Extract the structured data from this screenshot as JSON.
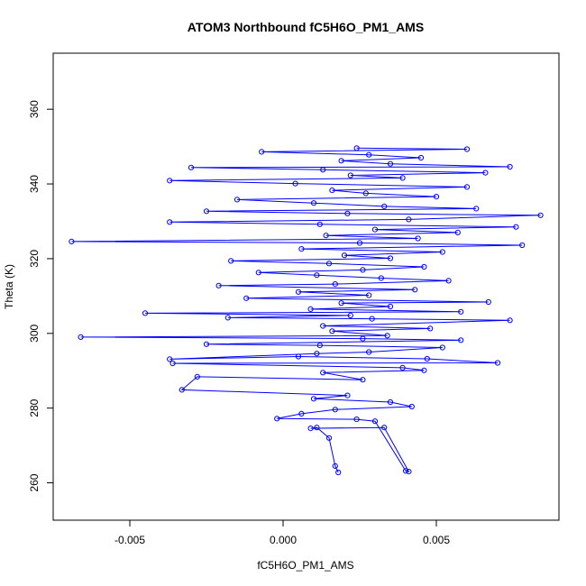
{
  "chart_data": {
    "type": "scatter",
    "title": "ATOM3 Northbound fC5H6O_PM1_AMS",
    "xlabel": "fC5H6O_PM1_AMS",
    "ylabel": "Theta (K)",
    "xlim": [
      -0.0075,
      0.009
    ],
    "ylim": [
      250,
      375
    ],
    "xticks": [
      -0.005,
      0.0,
      0.005
    ],
    "xtick_labels": [
      "-0.005",
      "0.000",
      "0.005"
    ],
    "yticks": [
      260,
      280,
      300,
      320,
      340,
      360
    ],
    "ytick_labels": [
      "260",
      "280",
      "300",
      "320",
      "340",
      "360"
    ],
    "grid": false,
    "legend": "none",
    "colors": {
      "series": "#0000ff",
      "axis": "#000000",
      "background": "#ffffff"
    },
    "markers": "open circles connected by lines",
    "series": [
      {
        "values": [
          [
            0.0018,
            262.8
          ],
          [
            0.0017,
            264.5
          ],
          [
            0.0015,
            272.0
          ],
          [
            0.0011,
            274.8
          ],
          [
            0.0009,
            274.6
          ],
          [
            0.0033,
            274.8
          ],
          [
            0.0041,
            263.0
          ],
          [
            0.004,
            263.2
          ],
          [
            0.003,
            276.5
          ],
          [
            0.0024,
            277.0
          ],
          [
            -0.0002,
            277.2
          ],
          [
            0.0006,
            278.5
          ],
          [
            0.0017,
            279.6
          ],
          [
            0.0042,
            280.4
          ],
          [
            0.0035,
            281.6
          ],
          [
            0.001,
            282.5
          ],
          [
            0.0021,
            283.4
          ],
          [
            -0.0033,
            284.9
          ],
          [
            -0.0028,
            288.4
          ],
          [
            0.0026,
            287.6
          ],
          [
            0.0013,
            289.5
          ],
          [
            0.0046,
            290.1
          ],
          [
            0.0039,
            290.8
          ],
          [
            -0.0036,
            292.0
          ],
          [
            0.007,
            292.1
          ],
          [
            0.0047,
            293.2
          ],
          [
            0.0005,
            293.8
          ],
          [
            -0.0037,
            293.1
          ],
          [
            0.0011,
            294.6
          ],
          [
            0.0028,
            295.0
          ],
          [
            0.0052,
            296.2
          ],
          [
            0.0012,
            296.8
          ],
          [
            -0.0025,
            297.1
          ],
          [
            0.0058,
            298.2
          ],
          [
            0.0026,
            298.6
          ],
          [
            -0.0066,
            299.0
          ],
          [
            0.0034,
            299.4
          ],
          [
            0.0016,
            300.6
          ],
          [
            0.0048,
            301.3
          ],
          [
            0.0013,
            302.0
          ],
          [
            0.0074,
            303.5
          ],
          [
            0.0029,
            303.9
          ],
          [
            -0.0018,
            304.2
          ],
          [
            0.0022,
            304.8
          ],
          [
            -0.0045,
            305.4
          ],
          [
            0.0058,
            305.8
          ],
          [
            0.0009,
            306.5
          ],
          [
            0.0035,
            307.2
          ],
          [
            0.0019,
            308.1
          ],
          [
            0.0067,
            308.4
          ],
          [
            -0.0012,
            309.4
          ],
          [
            0.0028,
            310.2
          ],
          [
            0.0005,
            311.1
          ],
          [
            0.0043,
            311.7
          ],
          [
            -0.0021,
            312.8
          ],
          [
            0.0017,
            313.2
          ],
          [
            0.0054,
            314.1
          ],
          [
            0.0032,
            314.8
          ],
          [
            0.0011,
            315.6
          ],
          [
            -0.0008,
            316.3
          ],
          [
            0.0026,
            317.0
          ],
          [
            0.0046,
            317.8
          ],
          [
            0.0015,
            318.7
          ],
          [
            -0.0017,
            319.4
          ],
          [
            0.0035,
            320.1
          ],
          [
            0.002,
            320.9
          ],
          [
            0.0052,
            321.8
          ],
          [
            0.0006,
            322.6
          ],
          [
            0.0078,
            323.6
          ],
          [
            0.0025,
            324.2
          ],
          [
            -0.0069,
            324.6
          ],
          [
            0.0044,
            325.4
          ],
          [
            0.0014,
            326.2
          ],
          [
            0.0057,
            327.0
          ],
          [
            0.003,
            327.8
          ],
          [
            0.0076,
            328.5
          ],
          [
            0.0012,
            329.2
          ],
          [
            -0.0037,
            329.8
          ],
          [
            0.0041,
            330.5
          ],
          [
            0.0084,
            331.6
          ],
          [
            0.0021,
            332.1
          ],
          [
            -0.0025,
            332.7
          ],
          [
            0.0063,
            333.4
          ],
          [
            0.0033,
            334.0
          ],
          [
            0.001,
            334.9
          ],
          [
            -0.0015,
            335.8
          ],
          [
            0.005,
            336.6
          ],
          [
            0.0027,
            337.5
          ],
          [
            0.0016,
            338.3
          ],
          [
            0.006,
            339.2
          ],
          [
            0.0004,
            340.1
          ],
          [
            -0.0037,
            340.9
          ],
          [
            0.0039,
            341.6
          ],
          [
            0.0022,
            342.3
          ],
          [
            0.0066,
            343.0
          ],
          [
            0.0013,
            343.8
          ],
          [
            -0.003,
            344.4
          ],
          [
            0.0074,
            344.6
          ],
          [
            0.0035,
            345.4
          ],
          [
            0.0019,
            346.2
          ],
          [
            0.0045,
            347.0
          ],
          [
            0.0028,
            347.8
          ],
          [
            -0.0007,
            348.6
          ],
          [
            0.006,
            349.3
          ],
          [
            0.0024,
            349.6
          ]
        ]
      }
    ]
  }
}
